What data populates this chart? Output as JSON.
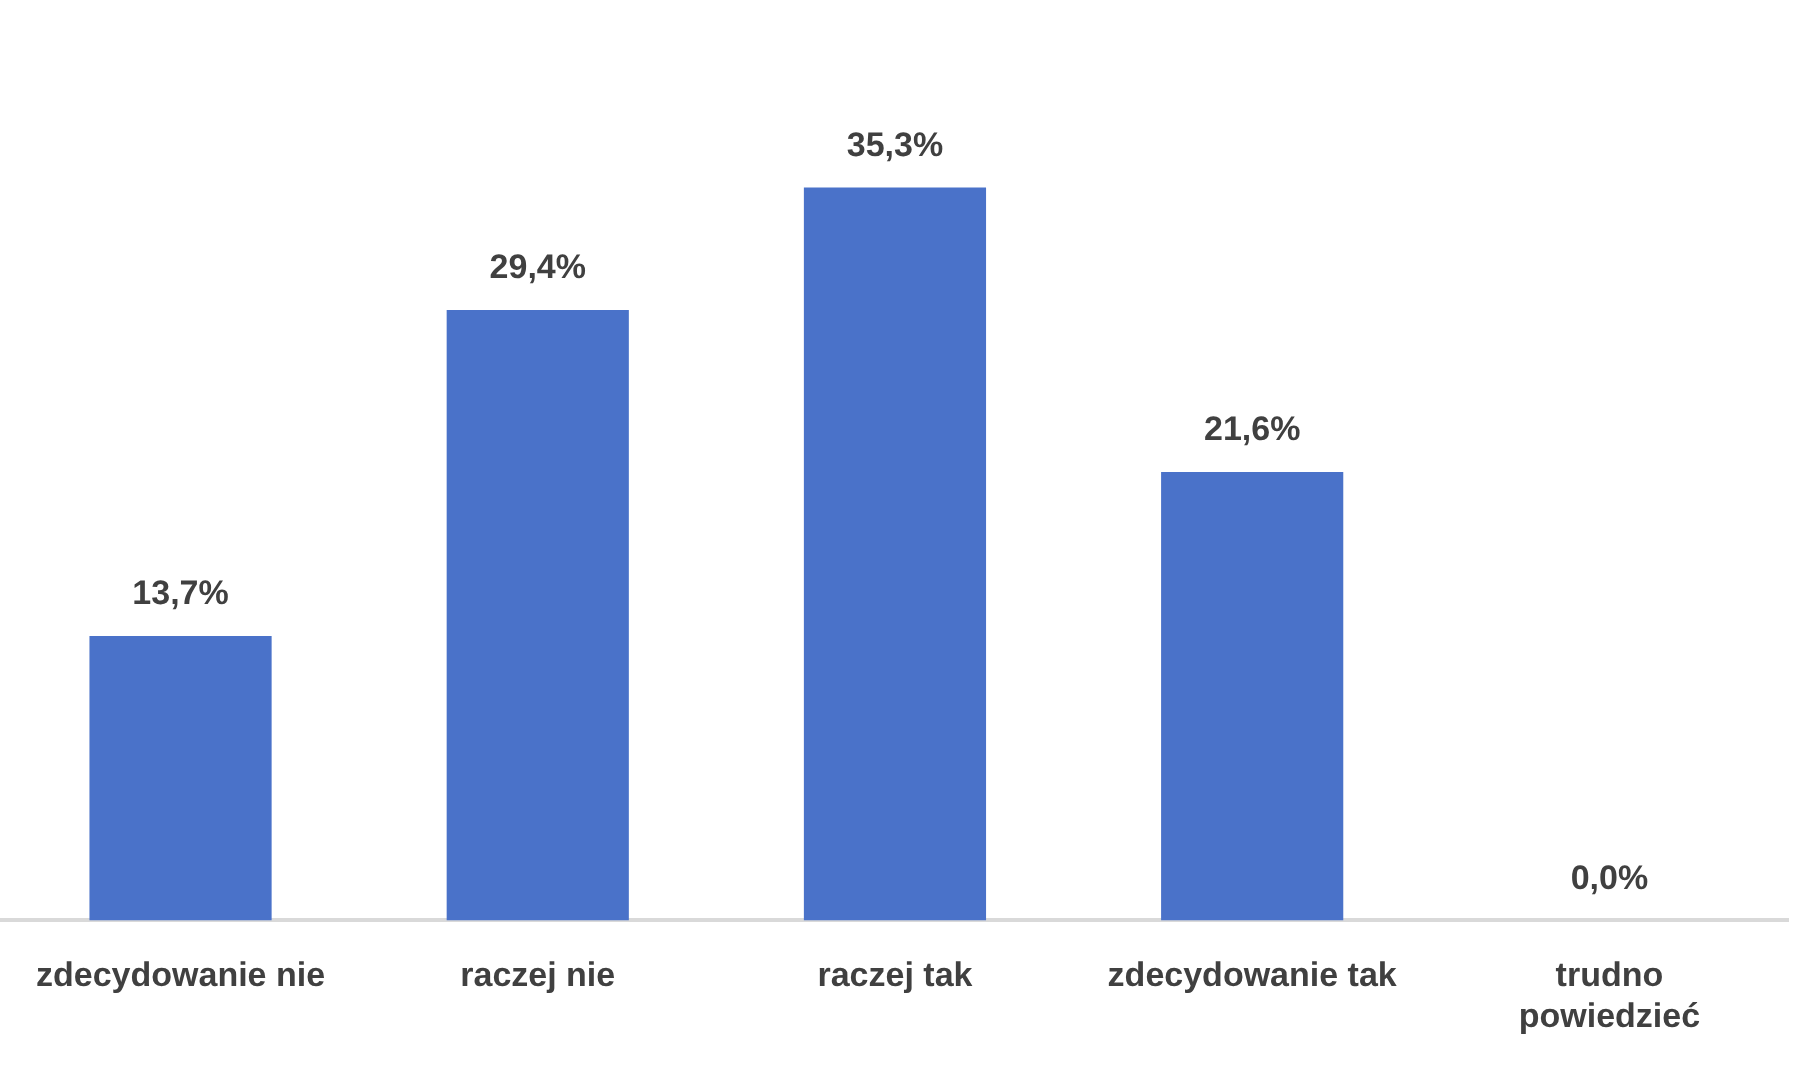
{
  "chart_data": {
    "type": "bar",
    "categories": [
      "zdecydowanie nie",
      "raczej nie",
      "raczej tak",
      "zdecydowanie tak",
      "trudno\npowiedzieć"
    ],
    "values": [
      13.7,
      29.4,
      35.3,
      21.6,
      0.0
    ],
    "value_labels": [
      "13,7%",
      "29,4%",
      "35,3%",
      "21,6%",
      "0,0%"
    ],
    "color": "#4a72c9",
    "tick_labels": "x",
    "grid": false,
    "legend": false
  }
}
